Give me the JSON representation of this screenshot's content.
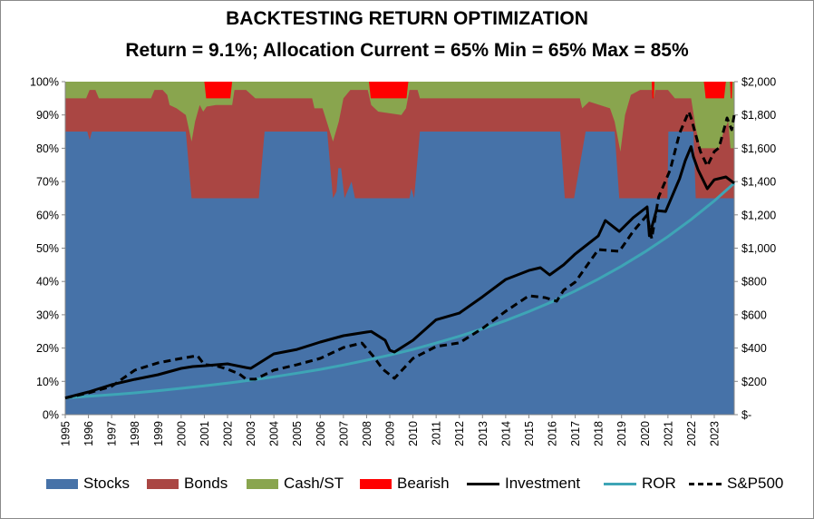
{
  "chart_data": {
    "type": "area",
    "title": "BACKTESTING RETURN OPTIMIZATION",
    "subtitle": "Return = 9.1%; Allocation Current = 65% Min = 65% Max = 85%",
    "x_tick_labels": [
      "1995",
      "1996",
      "1997",
      "1998",
      "1999",
      "2000",
      "2001",
      "2002",
      "2003",
      "2004",
      "2005",
      "2006",
      "2007",
      "2008",
      "2009",
      "2010",
      "2011",
      "2012",
      "2013",
      "2014",
      "2015",
      "2016",
      "2017",
      "2018",
      "2019",
      "2020",
      "2021",
      "2022",
      "2023"
    ],
    "xlim": [
      1995,
      2023.86
    ],
    "y_left": {
      "ylim": [
        0,
        100
      ],
      "tick_labels": [
        "0%",
        "10%",
        "20%",
        "30%",
        "40%",
        "50%",
        "60%",
        "70%",
        "80%",
        "90%",
        "100%"
      ],
      "ticks": [
        0,
        10,
        20,
        30,
        40,
        50,
        60,
        70,
        80,
        90,
        100
      ]
    },
    "y_right": {
      "ylim": [
        0,
        2000
      ],
      "tick_labels": [
        "$-",
        "$200",
        "$400",
        "$600",
        "$800",
        "$1,000",
        "$1,200",
        "$1,400",
        "$1,600",
        "$1,800",
        "$2,000"
      ],
      "ticks": [
        0,
        200,
        400,
        600,
        800,
        1000,
        1200,
        1400,
        1600,
        1800,
        2000
      ]
    },
    "legend_position": "bottom",
    "colors": {
      "stocks": "#4672a8",
      "bonds": "#aa4643",
      "cash": "#89a54e",
      "bearish": "#ff0000",
      "investment": "#000000",
      "ror": "#3ea5b6",
      "sp500": "#000000"
    },
    "legend": [
      "Stocks",
      "Bonds",
      "Cash/ST",
      "Bearish",
      "Investment",
      "ROR",
      "S&P500"
    ],
    "allocation": {
      "stocks_pct": [
        [
          1995,
          85
        ],
        [
          1995.95,
          85
        ],
        [
          1996.05,
          82.5
        ],
        [
          1996.15,
          85
        ],
        [
          2000.2,
          85
        ],
        [
          2000.45,
          65
        ],
        [
          2003.35,
          65
        ],
        [
          2003.6,
          85
        ],
        [
          2006.3,
          85
        ],
        [
          2006.55,
          65
        ],
        [
          2006.7,
          67
        ],
        [
          2006.78,
          74
        ],
        [
          2006.9,
          74
        ],
        [
          2007.05,
          65
        ],
        [
          2007.35,
          70
        ],
        [
          2007.5,
          65
        ],
        [
          2009.85,
          65
        ],
        [
          2009.93,
          68
        ],
        [
          2010.05,
          65
        ],
        [
          2010.3,
          85
        ],
        [
          2016.35,
          85
        ],
        [
          2016.55,
          65
        ],
        [
          2016.95,
          65
        ],
        [
          2017.45,
          85
        ],
        [
          2018.7,
          85
        ],
        [
          2018.9,
          65
        ],
        [
          2020.98,
          65
        ],
        [
          2021.02,
          85
        ],
        [
          2022.1,
          85
        ],
        [
          2022.2,
          65
        ],
        [
          2023.86,
          65
        ]
      ],
      "stocks_plus_bonds_pct": [
        [
          1995,
          95
        ],
        [
          1995.9,
          95
        ],
        [
          1996.05,
          97.5
        ],
        [
          1996.3,
          97.5
        ],
        [
          1996.45,
          95
        ],
        [
          1998.7,
          95
        ],
        [
          1998.85,
          97.5
        ],
        [
          1999.2,
          97.5
        ],
        [
          1999.4,
          96
        ],
        [
          1999.5,
          93
        ],
        [
          1999.8,
          92
        ],
        [
          2000.2,
          90
        ],
        [
          2000.45,
          82
        ],
        [
          2000.6,
          88
        ],
        [
          2000.8,
          93
        ],
        [
          2000.95,
          91
        ],
        [
          2001.1,
          92.5
        ],
        [
          2001.5,
          93
        ],
        [
          2002.2,
          93
        ],
        [
          2002.3,
          97.5
        ],
        [
          2002.8,
          97.5
        ],
        [
          2003.2,
          95
        ],
        [
          2005.65,
          95
        ],
        [
          2005.75,
          92
        ],
        [
          2006.1,
          92
        ],
        [
          2006.55,
          82
        ],
        [
          2006.8,
          88
        ],
        [
          2007.0,
          95
        ],
        [
          2007.3,
          97.5
        ],
        [
          2008.05,
          97.5
        ],
        [
          2008.2,
          93
        ],
        [
          2008.5,
          91
        ],
        [
          2009.5,
          90
        ],
        [
          2009.7,
          92
        ],
        [
          2009.85,
          97.5
        ],
        [
          2010.2,
          97.5
        ],
        [
          2010.3,
          95
        ],
        [
          2017.2,
          95
        ],
        [
          2017.3,
          92
        ],
        [
          2017.6,
          94
        ],
        [
          2018.5,
          92
        ],
        [
          2018.7,
          88
        ],
        [
          2018.95,
          79
        ],
        [
          2019.15,
          90
        ],
        [
          2019.4,
          96
        ],
        [
          2019.8,
          97.5
        ],
        [
          2020.3,
          97.5
        ],
        [
          2020.4,
          95
        ],
        [
          2020.45,
          97.5
        ],
        [
          2021.0,
          97.5
        ],
        [
          2021.3,
          95
        ],
        [
          2022.0,
          95
        ],
        [
          2022.2,
          86
        ],
        [
          2022.4,
          80
        ],
        [
          2023.2,
          80
        ],
        [
          2023.4,
          85
        ],
        [
          2023.6,
          88
        ],
        [
          2023.7,
          80
        ],
        [
          2023.86,
          80
        ]
      ],
      "total_pct": 100,
      "bearish_periods": [
        [
          2001.0,
          2002.2
        ],
        [
          2008.1,
          2009.8
        ],
        [
          2020.3,
          2020.42
        ],
        [
          2022.55,
          2023.5
        ],
        [
          2023.68,
          2023.78
        ]
      ],
      "bearish_band_pct": [
        95,
        100
      ]
    },
    "series": [
      {
        "name": "Investment",
        "axis": "right",
        "points": [
          [
            1995,
            100
          ],
          [
            1996,
            136
          ],
          [
            1997,
            180
          ],
          [
            1998,
            212
          ],
          [
            1999,
            240
          ],
          [
            2000,
            278
          ],
          [
            2000.5,
            289
          ],
          [
            2001,
            294
          ],
          [
            2002,
            305
          ],
          [
            2002.8,
            283
          ],
          [
            2003,
            278
          ],
          [
            2004,
            365
          ],
          [
            2005,
            392
          ],
          [
            2006,
            436
          ],
          [
            2007,
            474
          ],
          [
            2008,
            496
          ],
          [
            2008.2,
            500
          ],
          [
            2008.8,
            447
          ],
          [
            2009,
            387
          ],
          [
            2009.2,
            376
          ],
          [
            2010,
            447
          ],
          [
            2011,
            570
          ],
          [
            2012,
            610
          ],
          [
            2013,
            708
          ],
          [
            2014,
            812
          ],
          [
            2015,
            866
          ],
          [
            2015.5,
            883
          ],
          [
            2015.9,
            839
          ],
          [
            2016.5,
            900
          ],
          [
            2017,
            965
          ],
          [
            2018,
            1074
          ],
          [
            2018.3,
            1166
          ],
          [
            2018.9,
            1100
          ],
          [
            2019.5,
            1183
          ],
          [
            2020.1,
            1248
          ],
          [
            2020.2,
            1074
          ],
          [
            2020.5,
            1226
          ],
          [
            2020.9,
            1220
          ],
          [
            2021.4,
            1384
          ],
          [
            2021.5,
            1417
          ],
          [
            2021.75,
            1526
          ],
          [
            2022,
            1610
          ],
          [
            2022.1,
            1548
          ],
          [
            2022.3,
            1471
          ],
          [
            2022.7,
            1357
          ],
          [
            2023,
            1411
          ],
          [
            2023.5,
            1428
          ],
          [
            2023.86,
            1390
          ]
        ]
      },
      {
        "name": "ROR",
        "axis": "right",
        "points": [
          [
            1995,
            100
          ],
          [
            1996,
            110
          ],
          [
            1997,
            120
          ],
          [
            1998,
            131
          ],
          [
            1999,
            144
          ],
          [
            2000,
            158
          ],
          [
            2001,
            173
          ],
          [
            2002,
            189
          ],
          [
            2003,
            207
          ],
          [
            2004,
            227
          ],
          [
            2005,
            249
          ],
          [
            2006,
            272
          ],
          [
            2007,
            298
          ],
          [
            2008,
            327
          ],
          [
            2009,
            358
          ],
          [
            2010,
            392
          ],
          [
            2011,
            430
          ],
          [
            2012,
            471
          ],
          [
            2013,
            516
          ],
          [
            2014,
            565
          ],
          [
            2015,
            619
          ],
          [
            2016,
            678
          ],
          [
            2017,
            743
          ],
          [
            2018,
            814
          ],
          [
            2019,
            892
          ],
          [
            2020,
            977
          ],
          [
            2021,
            1070
          ],
          [
            2022,
            1172
          ],
          [
            2023,
            1284
          ],
          [
            2023.86,
            1390
          ]
        ]
      },
      {
        "name": "S&P500",
        "axis": "right",
        "points": [
          [
            1995,
            100
          ],
          [
            1996,
            130
          ],
          [
            1997,
            170
          ],
          [
            1998,
            267
          ],
          [
            1999,
            311
          ],
          [
            2000,
            338
          ],
          [
            2000.7,
            354
          ],
          [
            2001,
            300
          ],
          [
            2001.5,
            294
          ],
          [
            2002,
            273
          ],
          [
            2002.5,
            245
          ],
          [
            2002.8,
            213
          ],
          [
            2003.2,
            213
          ],
          [
            2004,
            267
          ],
          [
            2005,
            300
          ],
          [
            2006,
            338
          ],
          [
            2007,
            403
          ],
          [
            2007.8,
            430
          ],
          [
            2008.3,
            349
          ],
          [
            2008.7,
            273
          ],
          [
            2009.2,
            218
          ],
          [
            2010,
            338
          ],
          [
            2011,
            409
          ],
          [
            2012,
            431
          ],
          [
            2013,
            518
          ],
          [
            2014,
            621
          ],
          [
            2015,
            714
          ],
          [
            2015.7,
            703
          ],
          [
            2016.2,
            681
          ],
          [
            2016.5,
            747
          ],
          [
            2017,
            796
          ],
          [
            2018,
            992
          ],
          [
            2018.9,
            981
          ],
          [
            2019.5,
            1101
          ],
          [
            2020.1,
            1199
          ],
          [
            2020.3,
            1057
          ],
          [
            2020.6,
            1308
          ],
          [
            2021.1,
            1471
          ],
          [
            2021.5,
            1690
          ],
          [
            2021.9,
            1820
          ],
          [
            2022.0,
            1782
          ],
          [
            2022.4,
            1580
          ],
          [
            2022.7,
            1493
          ],
          [
            2023.0,
            1580
          ],
          [
            2023.2,
            1602
          ],
          [
            2023.55,
            1782
          ],
          [
            2023.75,
            1711
          ],
          [
            2023.86,
            1800
          ]
        ]
      }
    ]
  }
}
